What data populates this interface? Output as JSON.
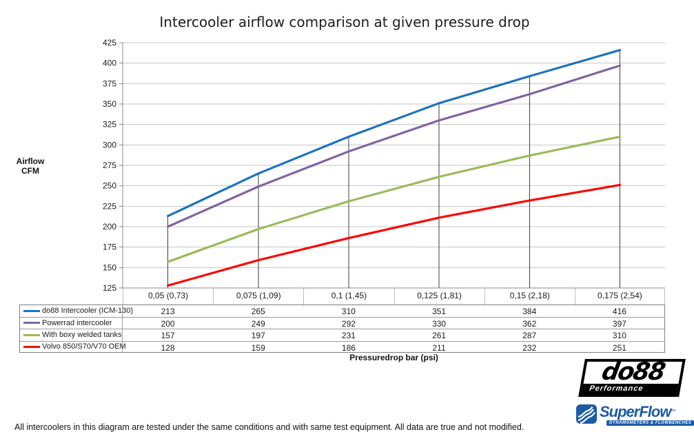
{
  "title": "Intercooler airflow comparison at given pressure drop",
  "footnote": "All intercoolers in this diagram are tested under the same conditions and with same test equipment. All data are true and not modified.",
  "chart_data": {
    "type": "line",
    "title": "Intercooler airflow comparison at given pressure drop",
    "xlabel": "Pressuredrop bar (psi)",
    "ylabel": "Airflow CFM",
    "ylabel_lines": [
      "Airflow",
      "CFM"
    ],
    "categories": [
      "0,05 (0,73)",
      "0,075 (1,09)",
      "0,1 (1,45)",
      "0,125 (1,81)",
      "0,15 (2,18)",
      "0,175 (2,54)"
    ],
    "series": [
      {
        "name": "do88 Intercooler (ICM-130)",
        "color": "#1e73be",
        "values": [
          213,
          265,
          310,
          351,
          384,
          416
        ]
      },
      {
        "name": "Powerrad intercooler",
        "color": "#8064a2",
        "values": [
          200,
          249,
          292,
          330,
          362,
          397
        ]
      },
      {
        "name": "With boxy welded tanks",
        "color": "#9bbb59",
        "values": [
          157,
          197,
          231,
          261,
          287,
          310
        ]
      },
      {
        "name": "Volvo 850/S70/V70 OEM",
        "color": "#ff0000",
        "values": [
          128,
          159,
          186,
          211,
          232,
          251
        ]
      }
    ],
    "ylim": [
      125,
      425
    ],
    "ytick_step": 25,
    "grid": true,
    "drop_lines": true,
    "legend_position": "table-left",
    "colors": {
      "gridline": "#c6c6c6",
      "axis": "#8a8a8a",
      "drop_line": "#3c3c3c",
      "text": "#1a1a1a"
    }
  },
  "logos": {
    "do88": {
      "text": "do88",
      "subtext": "Performance"
    },
    "superflow": {
      "text": "SuperFlow",
      "tm": "™",
      "subtext": "DYNAMOMETERS & FLOWBENCHES",
      "color": "#1a5ca6"
    }
  }
}
